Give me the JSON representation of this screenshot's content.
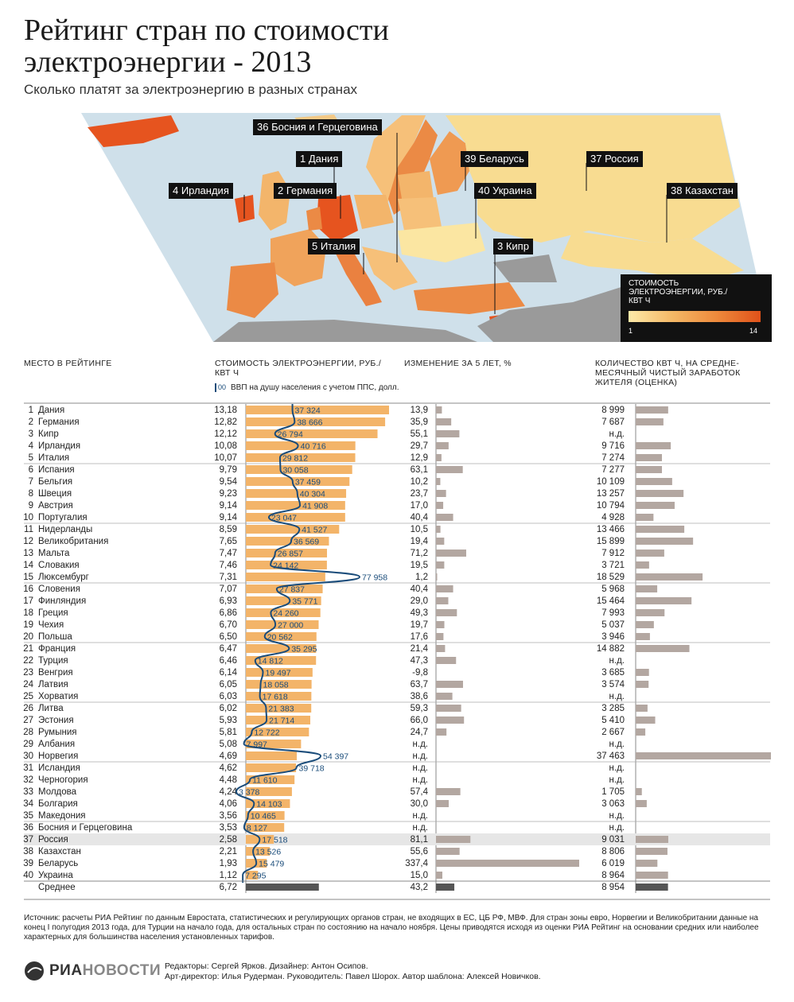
{
  "header": {
    "title": "Рейтинг стран по стоимости электроэнергии - 2013",
    "subtitle": "Сколько платят за электроэнергию в разных странах"
  },
  "map": {
    "labels": [
      {
        "id": "ba",
        "text": "36 Босния и Герцеговина"
      },
      {
        "id": "dk",
        "text": "1 Дания"
      },
      {
        "id": "by",
        "text": "39 Беларусь"
      },
      {
        "id": "ru",
        "text": "37 Россия"
      },
      {
        "id": "ie",
        "text": "4 Ирландия"
      },
      {
        "id": "de",
        "text": "2 Германия"
      },
      {
        "id": "ua",
        "text": "40 Украина"
      },
      {
        "id": "kz",
        "text": "38 Казахстан"
      },
      {
        "id": "it",
        "text": "5 Италия"
      },
      {
        "id": "cy",
        "text": "3 Кипр"
      }
    ],
    "legend": {
      "title": "СТОИМОСТЬ ЭЛЕКТРОЭНЕРГИИ, РУБ./ КВТ Ч",
      "min": "1",
      "max": "14",
      "colors": [
        "#fde9a8",
        "#e0521a"
      ]
    },
    "colors": {
      "sea": "#cfe0ea",
      "outside": "#9a9a9a"
    }
  },
  "columns": {
    "rank": "МЕСТО В РЕЙТИНГЕ",
    "price": "СТОИМОСТЬ ЭЛЕКТРОЭНЕРГИИ, РУБ./ КВТ Ч",
    "change": "ИЗМЕНЕНИЕ ЗА 5 ЛЕТ, %",
    "kwh": "КОЛИЧЕСТВО КВТ Ч, НА СРЕДНЕ-МЕСЯЧНЫЙ ЧИСТЫЙ ЗАРАБОТОК ЖИТЕЛЯ (ОЦЕНКА)",
    "gdp_note": "ВВП на душу населения с учетом ППС, долл.",
    "gdp_swatch": "00"
  },
  "chart_data": {
    "type": "bar",
    "rows": [
      {
        "rank": "1",
        "country": "Дания",
        "price": "13,18",
        "gdp": "37 324",
        "change": "13,9",
        "kwh": "8 999"
      },
      {
        "rank": "2",
        "country": "Германия",
        "price": "12,82",
        "gdp": "38 666",
        "change": "35,9",
        "kwh": "7 687"
      },
      {
        "rank": "3",
        "country": "Кипр",
        "price": "12,12",
        "gdp": "26 794",
        "change": "55,1",
        "kwh": "н.д."
      },
      {
        "rank": "4",
        "country": "Ирландия",
        "price": "10,08",
        "gdp": "40 716",
        "change": "29,7",
        "kwh": "9 716"
      },
      {
        "rank": "5",
        "country": "Италия",
        "price": "10,07",
        "gdp": "29 812",
        "change": "12,9",
        "kwh": "7 274"
      },
      {
        "rank": "6",
        "country": "Испания",
        "price": "9,79",
        "gdp": "30 058",
        "change": "63,1",
        "kwh": "7 277"
      },
      {
        "rank": "7",
        "country": "Бельгия",
        "price": "9,54",
        "gdp": "37 459",
        "change": "10,2",
        "kwh": "10 109"
      },
      {
        "rank": "8",
        "country": "Швеция",
        "price": "9,23",
        "gdp": "40 304",
        "change": "23,7",
        "kwh": "13 257"
      },
      {
        "rank": "9",
        "country": "Австрия",
        "price": "9,14",
        "gdp": "41 908",
        "change": "17,0",
        "kwh": "10 794"
      },
      {
        "rank": "10",
        "country": "Португалия",
        "price": "9,14",
        "gdp": "23 047",
        "change": "40,4",
        "kwh": "4 928"
      },
      {
        "rank": "11",
        "country": "Нидерланды",
        "price": "8,59",
        "gdp": "41 527",
        "change": "10,5",
        "kwh": "13 466"
      },
      {
        "rank": "12",
        "country": "Великобритания",
        "price": "7,65",
        "gdp": "36 569",
        "change": "19,4",
        "kwh": "15 899"
      },
      {
        "rank": "13",
        "country": "Мальта",
        "price": "7,47",
        "gdp": "26 857",
        "change": "71,2",
        "kwh": "7 912"
      },
      {
        "rank": "14",
        "country": "Словакия",
        "price": "7,46",
        "gdp": "24 142",
        "change": "19,5",
        "kwh": "3 721"
      },
      {
        "rank": "15",
        "country": "Люксембург",
        "price": "7,31",
        "gdp": "77 958",
        "change": "1,2",
        "kwh": "18 529"
      },
      {
        "rank": "16",
        "country": "Словения",
        "price": "7,07",
        "gdp": "27 837",
        "change": "40,4",
        "kwh": "5 968"
      },
      {
        "rank": "17",
        "country": "Финляндия",
        "price": "6,93",
        "gdp": "35 771",
        "change": "29,0",
        "kwh": "15 464"
      },
      {
        "rank": "18",
        "country": "Греция",
        "price": "6,86",
        "gdp": "24 260",
        "change": "49,3",
        "kwh": "7 993"
      },
      {
        "rank": "19",
        "country": "Чехия",
        "price": "6,70",
        "gdp": "27 000",
        "change": "19,7",
        "kwh": "5 037"
      },
      {
        "rank": "20",
        "country": "Польша",
        "price": "6,50",
        "gdp": "20 562",
        "change": "17,6",
        "kwh": "3 946"
      },
      {
        "rank": "21",
        "country": "Франция",
        "price": "6,47",
        "gdp": "35 295",
        "change": "21,4",
        "kwh": "14 882"
      },
      {
        "rank": "22",
        "country": "Турция",
        "price": "6,46",
        "gdp": "14 812",
        "change": "47,3",
        "kwh": "н.д."
      },
      {
        "rank": "23",
        "country": "Венгрия",
        "price": "6,14",
        "gdp": "19 497",
        "change": "-9,8",
        "kwh": "3 685"
      },
      {
        "rank": "24",
        "country": "Латвия",
        "price": "6,05",
        "gdp": "18 058",
        "change": "63,7",
        "kwh": "3 574"
      },
      {
        "rank": "25",
        "country": "Хорватия",
        "price": "6,03",
        "gdp": "17 618",
        "change": "38,6",
        "kwh": "н.д."
      },
      {
        "rank": "26",
        "country": "Литва",
        "price": "6,02",
        "gdp": "21 383",
        "change": "59,3",
        "kwh": "3 285"
      },
      {
        "rank": "27",
        "country": "Эстония",
        "price": "5,93",
        "gdp": "21 714",
        "change": "66,0",
        "kwh": "5 410"
      },
      {
        "rank": "28",
        "country": "Румыния",
        "price": "5,81",
        "gdp": "12 722",
        "change": "24,7",
        "kwh": "2 667"
      },
      {
        "rank": "29",
        "country": "Албания",
        "price": "5,08",
        "gdp": "7 997",
        "change": "н.д.",
        "kwh": "н.д."
      },
      {
        "rank": "30",
        "country": "Норвегия",
        "price": "4,69",
        "gdp": "54 397",
        "change": "н.д.",
        "kwh": "37 463"
      },
      {
        "rank": "31",
        "country": "Исландия",
        "price": "4,62",
        "gdp": "39 718",
        "change": "н.д.",
        "kwh": "н.д."
      },
      {
        "rank": "32",
        "country": "Черногория",
        "price": "4,48",
        "gdp": "11 610",
        "change": "н.д.",
        "kwh": "н.д."
      },
      {
        "rank": "33",
        "country": "Молдова",
        "price": "4,24",
        "gdp": "3 378",
        "change": "57,4",
        "kwh": "1 705"
      },
      {
        "rank": "34",
        "country": "Болгария",
        "price": "4,06",
        "gdp": "14 103",
        "change": "30,0",
        "kwh": "3 063"
      },
      {
        "rank": "35",
        "country": "Македония",
        "price": "3,56",
        "gdp": "10 465",
        "change": "н.д.",
        "kwh": "н.д."
      },
      {
        "rank": "36",
        "country": "Босния и Герцеговина",
        "price": "3,53",
        "gdp": "8 127",
        "change": "н.д.",
        "kwh": "н.д."
      },
      {
        "rank": "37",
        "country": "Россия",
        "price": "2,58",
        "gdp": "17 518",
        "change": "81,1",
        "kwh": "9 031",
        "highlight": true
      },
      {
        "rank": "38",
        "country": "Казахстан",
        "price": "2,21",
        "gdp": "13 526",
        "change": "55,6",
        "kwh": "8 806"
      },
      {
        "rank": "39",
        "country": "Беларусь",
        "price": "1,93",
        "gdp": "15 479",
        "change": "337,4",
        "kwh": "6 019"
      },
      {
        "rank": "40",
        "country": "Украина",
        "price": "1,12",
        "gdp": "7 295",
        "change": "15,0",
        "kwh": "8 964"
      }
    ],
    "average": {
      "label": "Среднее",
      "price": "6,72",
      "change": "43,2",
      "kwh": "8 954"
    },
    "colors": {
      "price_bar": "#f3b469",
      "change_bar": "#b3a7a1",
      "kwh_bar": "#b3a7a1",
      "gdp_line": "#1a4c7a",
      "average_bar": "#555555"
    }
  },
  "footer": {
    "source": "Источник: расчеты РИА Рейтинг по данным Евростата, статистических и регулирующих органов стран, не входящих в ЕС, ЦБ РФ, МВФ. Для стран зоны евро, Норвегии и Великобритании данные на конец I полугодия 2013 года, для Турции на начало года, для остальных стран по состоянию на начало ноября. Цены приводятся исходя из оценки РИА Рейтинг на основании средних или наиболее характерных для большинства населения установленных тарифов.",
    "logo_a": "РИА",
    "logo_b": "НОВОСТИ",
    "credits_1": "Редакторы: Сергей Ярков. Дизайнер: Антон Осипов.",
    "credits_2": "Арт-директор: Илья Рудерман. Руководитель: Павел Шорох. Автор шаблона: Алексей Новичков."
  }
}
